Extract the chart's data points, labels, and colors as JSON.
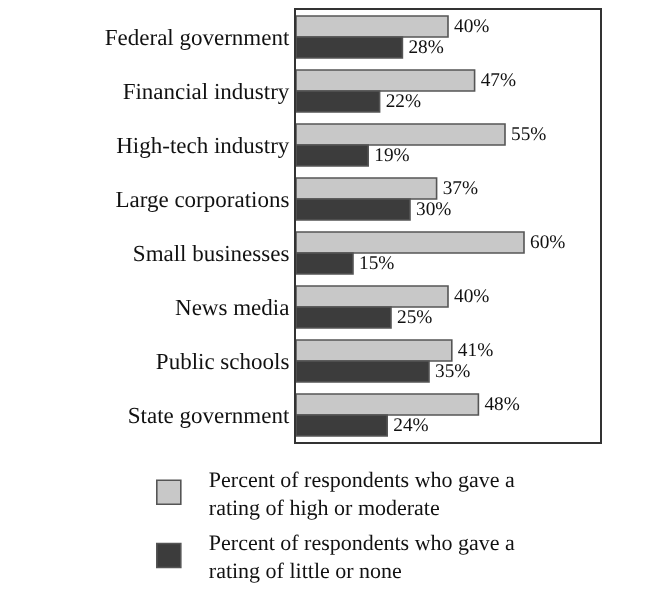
{
  "chart_data": {
    "type": "bar",
    "orientation": "horizontal",
    "categories": [
      "Federal government",
      "Financial industry",
      "High-tech industry",
      "Large corporations",
      "Small businesses",
      "News media",
      "Public schools",
      "State government"
    ],
    "series": [
      {
        "name": "Percent of respondents who gave a rating of high or moderate",
        "color": "#c8c8c8",
        "values": [
          40,
          47,
          55,
          37,
          60,
          40,
          41,
          48
        ],
        "value_labels": [
          "40%",
          "47%",
          "55%",
          "37%",
          "60%",
          "40%",
          "41%",
          "48%"
        ]
      },
      {
        "name": "Percent of respondents who gave a rating of little or none",
        "color": "#3c3c3c",
        "values": [
          28,
          22,
          19,
          30,
          15,
          25,
          35,
          24
        ],
        "value_labels": [
          "28%",
          "22%",
          "19%",
          "30%",
          "15%",
          "25%",
          "35%",
          "24%"
        ]
      }
    ],
    "legend": "bottom"
  }
}
